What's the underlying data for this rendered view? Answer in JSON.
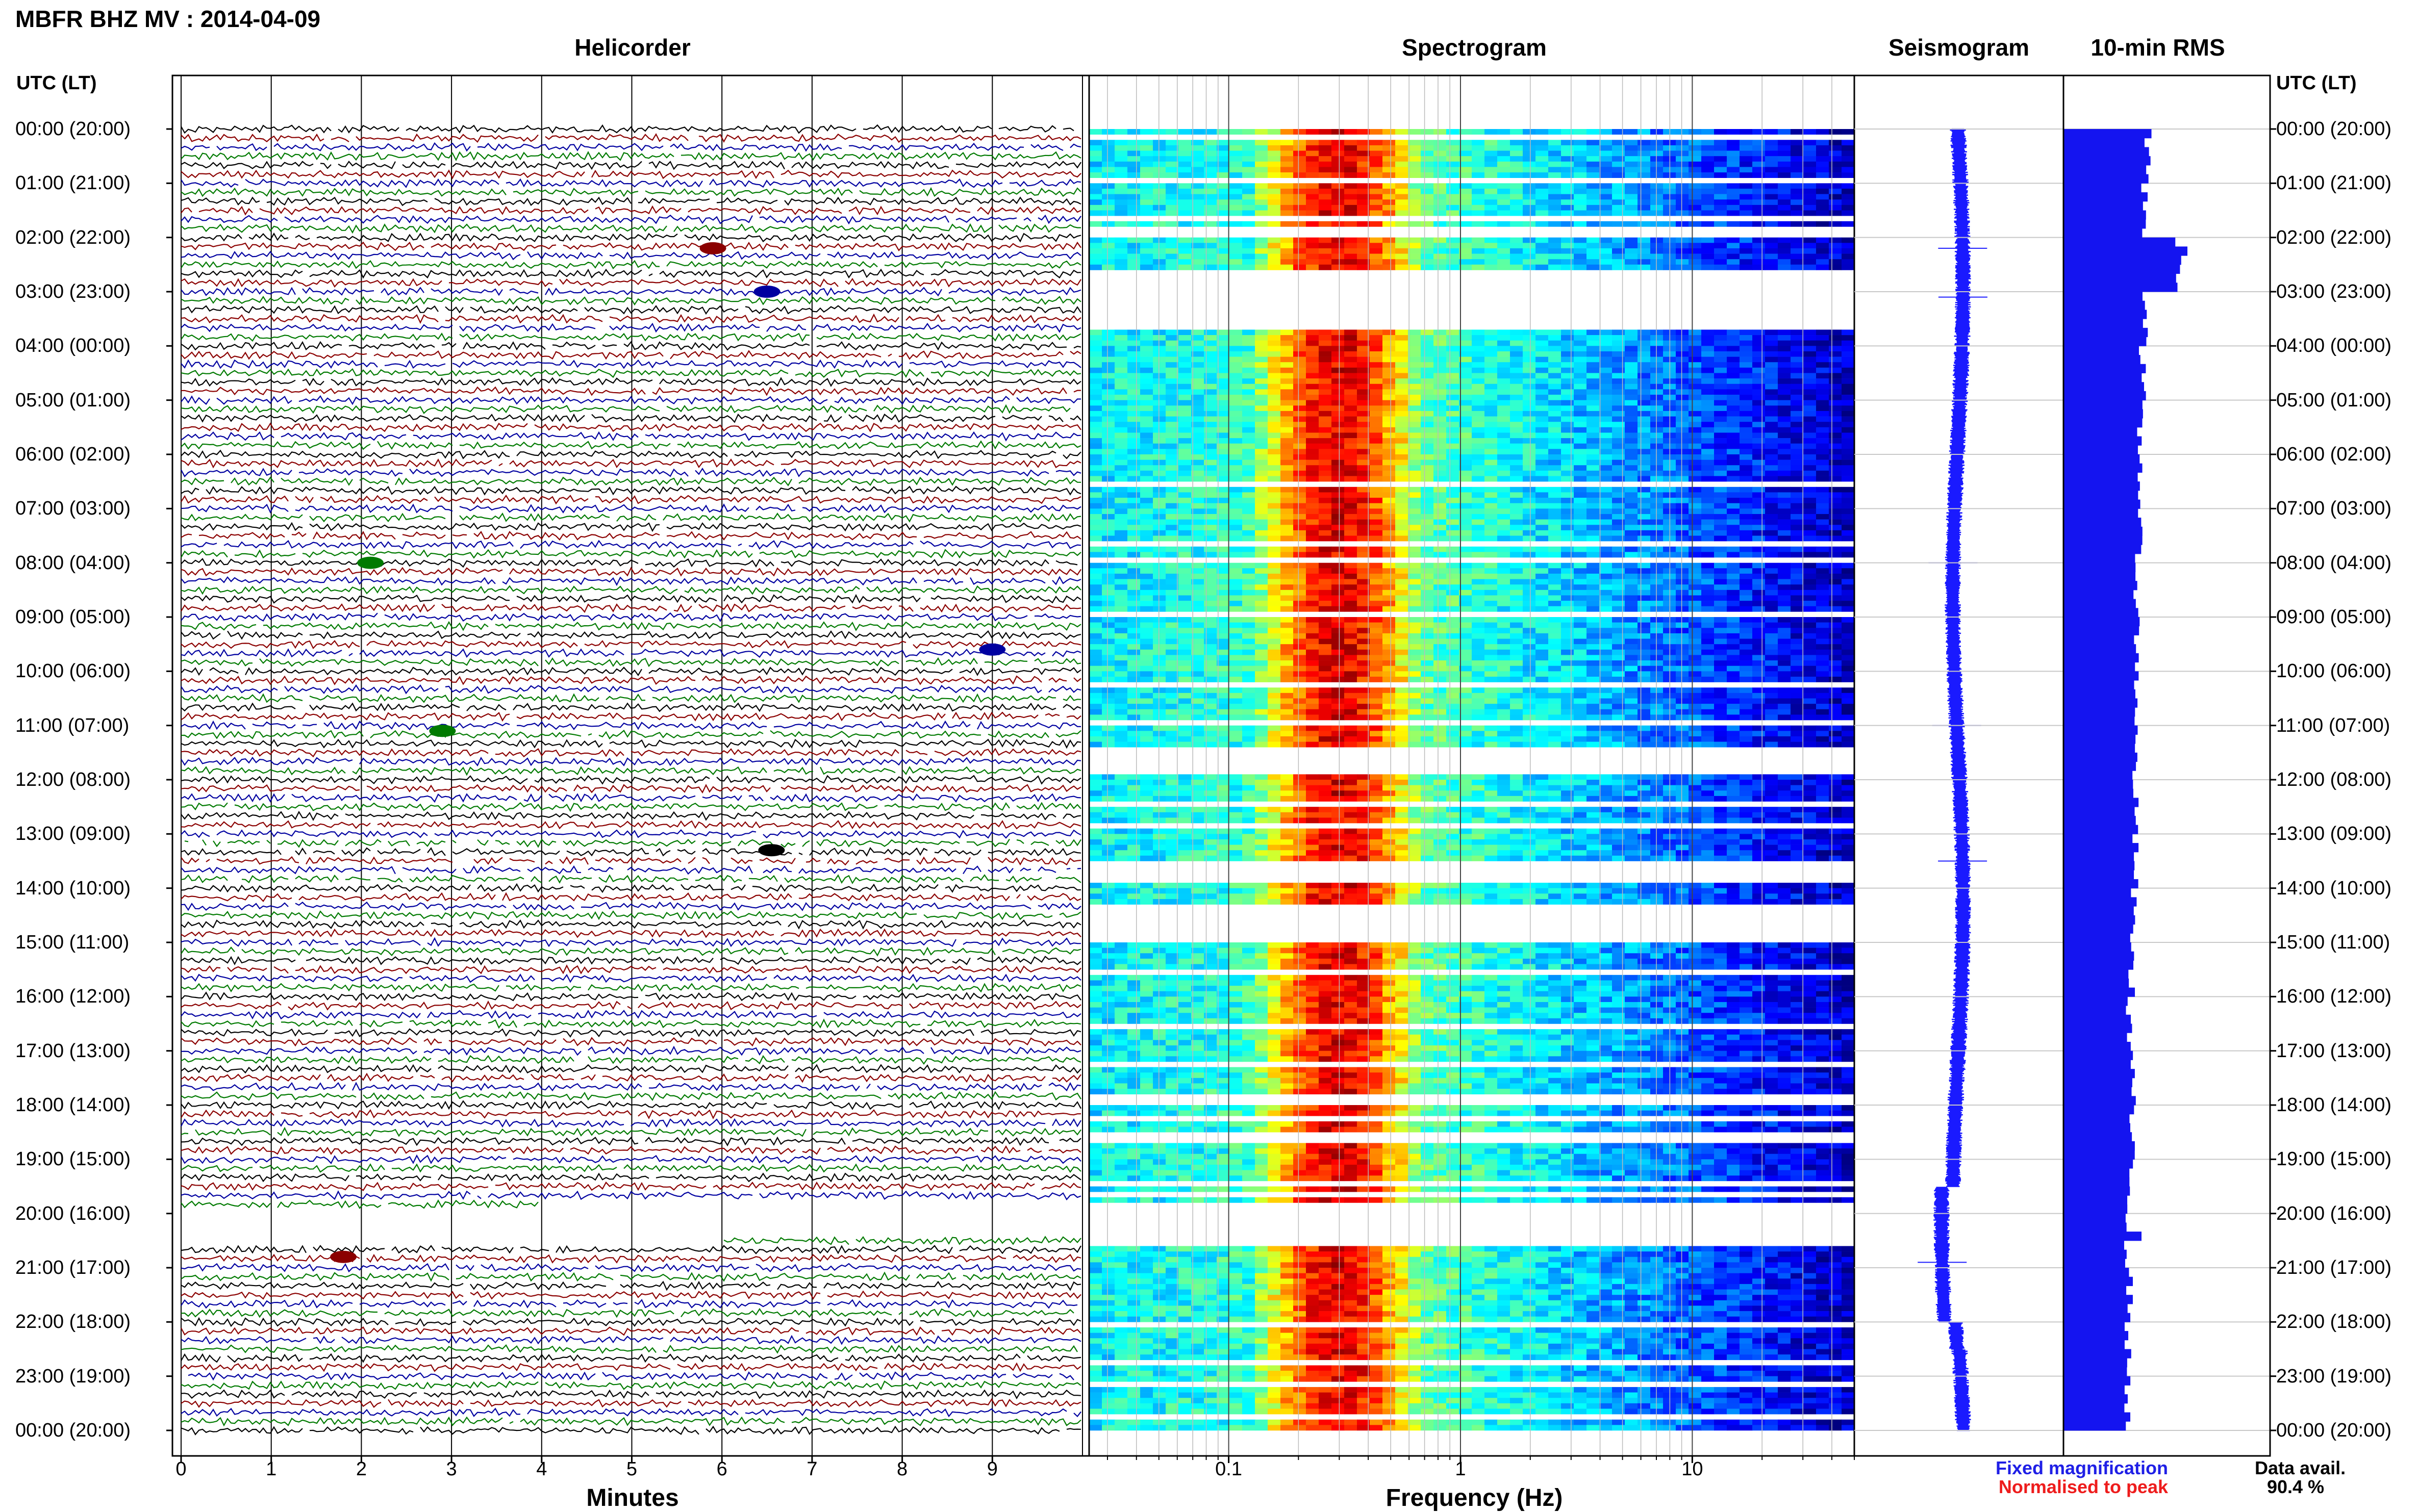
{
  "page_title": "MBFR BHZ MV : 2014-04-09",
  "panels": {
    "helicorder": "Helicorder",
    "spectrogram": "Spectrogram",
    "seismogram": "Seismogram",
    "rms": "10-min RMS"
  },
  "time_axis_header": "UTC (LT)",
  "time_labels": [
    "00:00 (20:00)",
    "01:00 (21:00)",
    "02:00 (22:00)",
    "03:00 (23:00)",
    "04:00 (00:00)",
    "05:00 (01:00)",
    "06:00 (02:00)",
    "07:00 (03:00)",
    "08:00 (04:00)",
    "09:00 (05:00)",
    "10:00 (06:00)",
    "11:00 (07:00)",
    "12:00 (08:00)",
    "13:00 (09:00)",
    "14:00 (10:00)",
    "15:00 (11:00)",
    "16:00 (12:00)",
    "17:00 (13:00)",
    "18:00 (14:00)",
    "19:00 (15:00)",
    "20:00 (16:00)",
    "21:00 (17:00)",
    "22:00 (18:00)",
    "23:00 (19:00)",
    "00:00 (20:00)"
  ],
  "helicorder_axis": {
    "xlabel": "Minutes",
    "ticks": [
      "0",
      "1",
      "2",
      "3",
      "4",
      "5",
      "6",
      "7",
      "8",
      "9"
    ]
  },
  "spectrogram_axis": {
    "xlabel": "Frequency (Hz)",
    "ticks": [
      "0.1",
      "1",
      "10"
    ],
    "scale": "log"
  },
  "legend": {
    "fixed": "Fixed magnification",
    "normalised": "Normalised to peak",
    "fixed_color": "#1f1fe6",
    "normalised_color": "#ee1c1c"
  },
  "availability": {
    "label": "Data avail.",
    "value": "90.4 %"
  },
  "colors": {
    "trace_cycle": [
      "#000000",
      "#8b0000",
      "#0000a0",
      "#007a00"
    ],
    "rms_bar": "#1414f0",
    "seismogram": "#1a1aff"
  },
  "chart_data": [
    {
      "type": "line",
      "name": "Helicorder",
      "x_unit": "minutes",
      "xlim": [
        0,
        10
      ],
      "rows_per_hour": 6,
      "rows": 145,
      "gaps_hours": [
        [
          19.9,
          20.6
        ]
      ]
    },
    {
      "type": "heatmap",
      "name": "Spectrogram",
      "xlabel": "Frequency (Hz)",
      "xscale": "log",
      "xlim": [
        0.025,
        50
      ],
      "peak_frequency_hz": 0.3,
      "blank_hours": [
        [
          0.95,
          1.0
        ],
        [
          1.85,
          2.0
        ],
        [
          2.6,
          3.5
        ],
        [
          3.65,
          3.7
        ],
        [
          7.65,
          7.72
        ],
        [
          11.45,
          11.9
        ],
        [
          13.55,
          13.8
        ],
        [
          14.4,
          15.0
        ],
        [
          19.8,
          20.6
        ]
      ]
    },
    {
      "type": "bar",
      "name": "10-min RMS",
      "orientation": "horizontal",
      "hours": [
        0,
        1,
        2,
        3,
        4,
        5,
        6,
        7,
        8,
        9,
        10,
        11,
        12,
        13,
        14,
        15,
        16,
        17,
        18,
        19,
        20,
        21,
        22,
        23
      ],
      "values": [
        0.92,
        0.88,
        1.25,
        0.9,
        0.86,
        0.83,
        0.84,
        0.82,
        0.8,
        0.8,
        0.8,
        0.78,
        0.78,
        0.78,
        0.76,
        0.74,
        0.72,
        0.75,
        0.74,
        0.72,
        0.7,
        0.72,
        0.7,
        0.7
      ],
      "peaks": [
        {
          "hour": 2.15,
          "value": 1.35
        },
        {
          "hour": 20.4,
          "value": 0.85
        }
      ]
    }
  ]
}
